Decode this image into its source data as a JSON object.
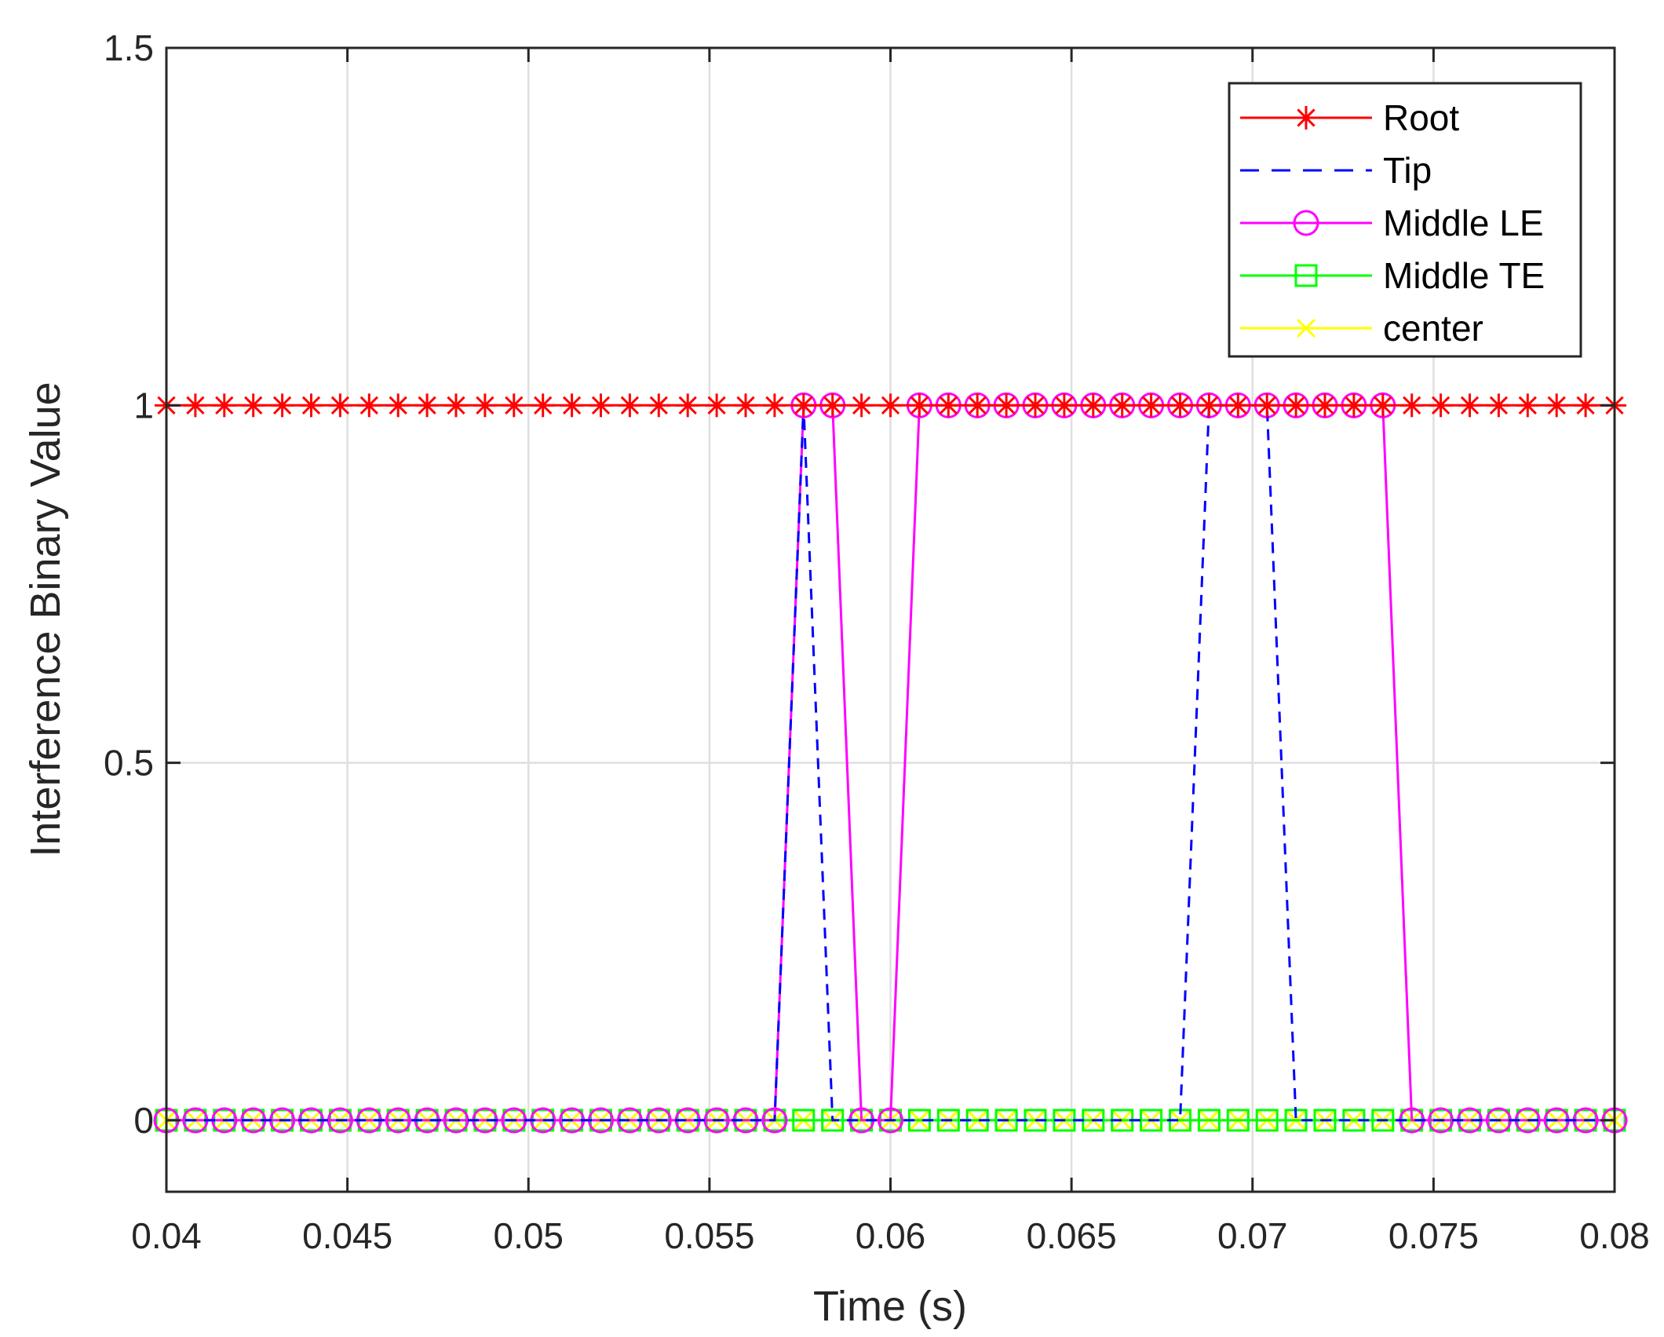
{
  "chart_data": {
    "type": "line",
    "title": "",
    "xlabel": "Time (s)",
    "ylabel": "Interference Binary Value",
    "xlim": [
      0.04,
      0.08
    ],
    "ylim": [
      -0.1,
      1.5
    ],
    "x_ticks": [
      0.04,
      0.045,
      0.05,
      0.055,
      0.06,
      0.065,
      0.07,
      0.075,
      0.08
    ],
    "x_tick_labels": [
      "0.04",
      "0.045",
      "0.05",
      "0.055",
      "0.06",
      "0.065",
      "0.07",
      "0.075",
      "0.08"
    ],
    "y_ticks": [
      0,
      0.5,
      1,
      1.5
    ],
    "y_tick_labels": [
      "0",
      "0.5",
      "1",
      "1.5"
    ],
    "grid": true,
    "legend_position": "top-right",
    "x_start": 0.04,
    "x_step": 0.0008,
    "series": [
      {
        "name": "Root",
        "color": "#ff0000",
        "dash": "solid",
        "marker": "asterisk",
        "values": [
          1,
          1,
          1,
          1,
          1,
          1,
          1,
          1,
          1,
          1,
          1,
          1,
          1,
          1,
          1,
          1,
          1,
          1,
          1,
          1,
          1,
          1,
          1,
          1,
          1,
          1,
          1,
          1,
          1,
          1,
          1,
          1,
          1,
          1,
          1,
          1,
          1,
          1,
          1,
          1,
          1,
          1,
          1,
          1,
          1,
          1,
          1,
          1,
          1,
          1,
          1
        ]
      },
      {
        "name": "Tip",
        "color": "#0000ff",
        "dash": "dashed",
        "marker": "none",
        "values": [
          0,
          0,
          0,
          0,
          0,
          0,
          0,
          0,
          0,
          0,
          0,
          0,
          0,
          0,
          0,
          0,
          0,
          0,
          0,
          0,
          0,
          0,
          1,
          0,
          0,
          0,
          0,
          0,
          0,
          0,
          0,
          0,
          0,
          0,
          0,
          0,
          1,
          1,
          1,
          0,
          0,
          0,
          0,
          0,
          0,
          0,
          0,
          0,
          0,
          0,
          0
        ]
      },
      {
        "name": "Middle LE",
        "color": "#ff00ff",
        "dash": "solid",
        "marker": "circle",
        "values": [
          0,
          0,
          0,
          0,
          0,
          0,
          0,
          0,
          0,
          0,
          0,
          0,
          0,
          0,
          0,
          0,
          0,
          0,
          0,
          0,
          0,
          0,
          1,
          1,
          0,
          0,
          1,
          1,
          1,
          1,
          1,
          1,
          1,
          1,
          1,
          1,
          1,
          1,
          1,
          1,
          1,
          1,
          1,
          0,
          0,
          0,
          0,
          0,
          0,
          0,
          0
        ]
      },
      {
        "name": "Middle TE",
        "color": "#00ff00",
        "dash": "solid",
        "marker": "square",
        "values": [
          0,
          0,
          0,
          0,
          0,
          0,
          0,
          0,
          0,
          0,
          0,
          0,
          0,
          0,
          0,
          0,
          0,
          0,
          0,
          0,
          0,
          0,
          0,
          0,
          0,
          0,
          0,
          0,
          0,
          0,
          0,
          0,
          0,
          0,
          0,
          0,
          0,
          0,
          0,
          0,
          0,
          0,
          0,
          0,
          0,
          0,
          0,
          0,
          0,
          0,
          0
        ]
      },
      {
        "name": "center",
        "color": "#ffff00",
        "dash": "solid",
        "marker": "x",
        "values": [
          0,
          0,
          0,
          0,
          0,
          0,
          0,
          0,
          0,
          0,
          0,
          0,
          0,
          0,
          0,
          0,
          0,
          0,
          0,
          0,
          0,
          0,
          0,
          0,
          0,
          0,
          0,
          0,
          0,
          0,
          0,
          0,
          0,
          0,
          0,
          0,
          0,
          0,
          0,
          0,
          0,
          0,
          0,
          0,
          0,
          0,
          0,
          0,
          0,
          0,
          0
        ]
      }
    ]
  }
}
